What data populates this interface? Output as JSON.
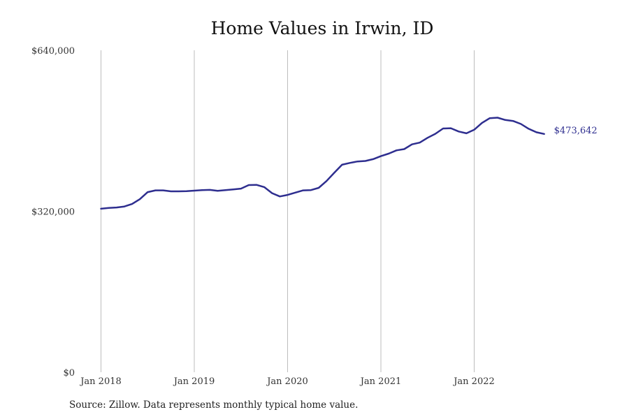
{
  "chart_data": {
    "type": "line",
    "title": "Home Values in Irwin, ID",
    "source": "Source: Zillow. Data represents monthly typical home value.",
    "line_color": "#2e2e8f",
    "grid_color": "#bdbdbd",
    "grid": "vertical",
    "ylim": [
      0,
      640000
    ],
    "y_ticks": [
      {
        "value": 0,
        "label": "$0"
      },
      {
        "value": 320000,
        "label": "$320,000"
      },
      {
        "value": 640000,
        "label": "$640,000"
      }
    ],
    "x_ticks": [
      {
        "index": 0,
        "label": "Jan 2018"
      },
      {
        "index": 12,
        "label": "Jan 2019"
      },
      {
        "index": 24,
        "label": "Jan 2020"
      },
      {
        "index": 36,
        "label": "Jan 2021"
      },
      {
        "index": 48,
        "label": "Jan 2022"
      }
    ],
    "end_label": "$473,642",
    "series": [
      {
        "values": [
          325000,
          326500,
          327500,
          329500,
          334500,
          344000,
          358000,
          361500,
          361500,
          359500,
          359500,
          360000,
          361000,
          362000,
          362500,
          360500,
          362000,
          363500,
          365000,
          372000,
          372500,
          368000,
          356000,
          349500,
          352500,
          357000,
          361500,
          362000,
          366500,
          380000,
          396500,
          412500,
          416000,
          419000,
          420000,
          423500,
          429500,
          434500,
          441000,
          443500,
          453000,
          456500,
          466000,
          474000,
          484500,
          485000,
          478500,
          475000,
          482000,
          495500,
          505000,
          506000,
          501500,
          499500,
          493500,
          484000,
          477000,
          473642
        ]
      }
    ]
  }
}
